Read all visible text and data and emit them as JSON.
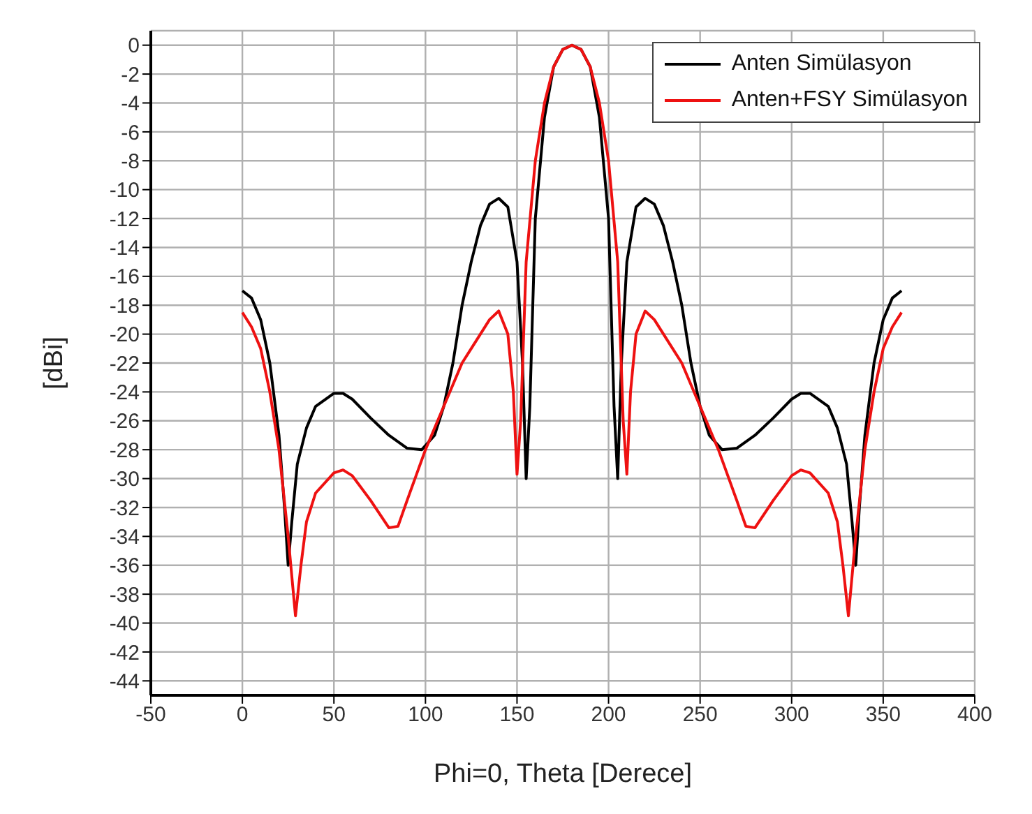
{
  "chart_data": {
    "type": "line",
    "xlabel": "Phi=0, Theta [Derece]",
    "ylabel": "[dBi]",
    "xlim": [
      -50,
      400
    ],
    "xticks": [
      -50,
      0,
      50,
      100,
      150,
      200,
      250,
      300,
      350,
      400
    ],
    "ylim": [
      -45,
      1
    ],
    "yticks": [
      0,
      -2,
      -4,
      -6,
      -8,
      -10,
      -12,
      -14,
      -16,
      -18,
      -20,
      -22,
      -24,
      -26,
      -28,
      -30,
      -32,
      -34,
      -36,
      -38,
      -40,
      -42,
      -44
    ],
    "grid": true,
    "legend": "top right",
    "marker": "none",
    "line_style": "solid",
    "series": [
      {
        "name": "Anten Simülasyon",
        "color": "#000000",
        "x": [
          0,
          5,
          10,
          15,
          20,
          23,
          25,
          27,
          30,
          35,
          40,
          50,
          55,
          60,
          70,
          80,
          90,
          98,
          105,
          110,
          115,
          120,
          125,
          130,
          135,
          140,
          145,
          150,
          153,
          155,
          157,
          160,
          165,
          170,
          175,
          180,
          185,
          190,
          195,
          200,
          203,
          205,
          207,
          210,
          215,
          220,
          225,
          230,
          235,
          240,
          245,
          250,
          255,
          262,
          270,
          280,
          290,
          300,
          305,
          310,
          320,
          325,
          330,
          333,
          335,
          337,
          340,
          345,
          350,
          355,
          360
        ],
        "values": [
          -17,
          -17.5,
          -19,
          -22,
          -27,
          -32,
          -36,
          -33,
          -29,
          -26.5,
          -25,
          -24.1,
          -24.1,
          -24.5,
          -25.8,
          -27,
          -27.9,
          -28,
          -27,
          -25,
          -22,
          -18,
          -15,
          -12.5,
          -11,
          -10.6,
          -11.2,
          -15,
          -22,
          -30,
          -25,
          -12,
          -5,
          -1.5,
          -0.3,
          0,
          -0.3,
          -1.5,
          -5,
          -12,
          -25,
          -30,
          -22,
          -15,
          -11.2,
          -10.6,
          -11,
          -12.5,
          -15,
          -18,
          -22,
          -25,
          -27,
          -28,
          -27.9,
          -27,
          -25.8,
          -24.5,
          -24.1,
          -24.1,
          -25,
          -26.5,
          -29,
          -33,
          -36,
          -32,
          -27,
          -22,
          -19,
          -17.5,
          -17
        ]
      },
      {
        "name": "Anten+FSY Simülasyon",
        "color": "#ee1111",
        "x": [
          0,
          5,
          10,
          15,
          20,
          25,
          29,
          32,
          35,
          40,
          50,
          55,
          60,
          70,
          80,
          85,
          90,
          100,
          110,
          115,
          120,
          130,
          135,
          140,
          145,
          148,
          150,
          152,
          155,
          160,
          165,
          170,
          175,
          180,
          185,
          190,
          195,
          200,
          205,
          208,
          210,
          212,
          215,
          220,
          225,
          230,
          240,
          245,
          250,
          260,
          270,
          275,
          280,
          290,
          300,
          305,
          310,
          320,
          325,
          328,
          331,
          335,
          340,
          345,
          350,
          355,
          360
        ],
        "values": [
          -18.5,
          -19.5,
          -21,
          -24,
          -28,
          -34,
          -39.5,
          -36,
          -33,
          -31,
          -29.6,
          -29.4,
          -29.8,
          -31.5,
          -33.4,
          -33.3,
          -31.5,
          -28,
          -25,
          -23.5,
          -22,
          -20,
          -19,
          -18.4,
          -20,
          -24,
          -29.7,
          -26,
          -15,
          -8,
          -4,
          -1.5,
          -0.3,
          0,
          -0.3,
          -1.5,
          -4,
          -8,
          -15,
          -26,
          -29.7,
          -24,
          -20,
          -18.4,
          -19,
          -20,
          -22,
          -23.5,
          -25,
          -28,
          -31.5,
          -33.3,
          -33.4,
          -31.5,
          -29.8,
          -29.4,
          -29.6,
          -31,
          -33,
          -36,
          -39.5,
          -34,
          -28,
          -24,
          -21,
          -19.5,
          -18.5
        ]
      }
    ]
  }
}
